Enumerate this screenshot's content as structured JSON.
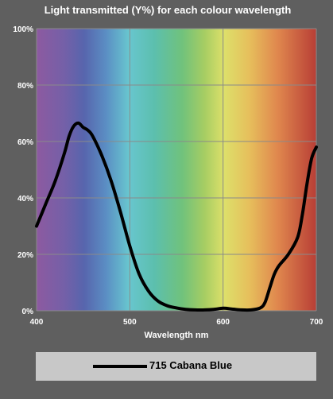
{
  "colors": {
    "background": "#5f5f5f",
    "grid": "#8a8a8a",
    "text": "#ffffff",
    "series": "#000000",
    "legend_bg": "#c8c8c8"
  },
  "chart_data": {
    "type": "line",
    "title": "Light transmitted (Y%) for each colour wavelength",
    "xlabel": "Wavelength nm",
    "ylabel": "",
    "xlim": [
      400,
      700
    ],
    "ylim": [
      0,
      100
    ],
    "x_ticks": [
      400,
      500,
      600,
      700
    ],
    "x_tick_labels": [
      "400",
      "500",
      "600",
      "700"
    ],
    "y_ticks": [
      0,
      20,
      40,
      60,
      80,
      100
    ],
    "y_tick_labels": [
      "0%",
      "20%",
      "40%",
      "60%",
      "80%",
      "100%"
    ],
    "grid": true,
    "legend_position": "bottom",
    "background": "visible-spectrum gradient",
    "series": [
      {
        "name": "715 Cabana Blue",
        "color": "#000000",
        "x": [
          400,
          410,
          420,
          430,
          435,
          440,
          445,
          450,
          455,
          460,
          470,
          480,
          490,
          500,
          510,
          520,
          530,
          540,
          550,
          560,
          570,
          580,
          590,
          600,
          610,
          620,
          630,
          640,
          645,
          650,
          655,
          660,
          670,
          680,
          685,
          690,
          695,
          700
        ],
        "values": [
          30,
          38,
          46,
          56,
          62,
          65.5,
          66.5,
          65,
          64,
          62,
          55,
          46,
          35,
          23,
          13,
          7,
          3.5,
          1.8,
          1,
          0.5,
          0.3,
          0.3,
          0.5,
          0.9,
          0.6,
          0.3,
          0.3,
          1,
          3,
          8,
          13,
          16,
          20,
          26,
          34,
          45,
          54,
          58
        ]
      }
    ]
  }
}
